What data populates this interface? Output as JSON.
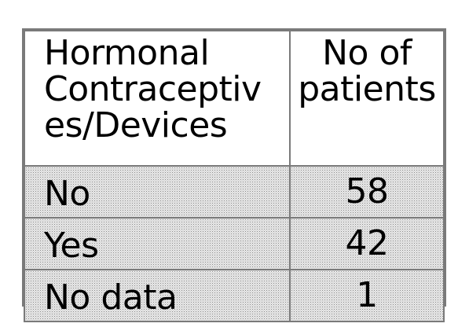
{
  "table": {
    "headers": [
      [
        "Hormonal",
        "Contraceptiv",
        "es/Devices"
      ],
      [
        "No of",
        "patients"
      ]
    ],
    "rows": [
      {
        "label": "No",
        "value": "58"
      },
      {
        "label": "Yes",
        "value": "42"
      },
      {
        "label": "No data",
        "value": "1"
      }
    ]
  }
}
